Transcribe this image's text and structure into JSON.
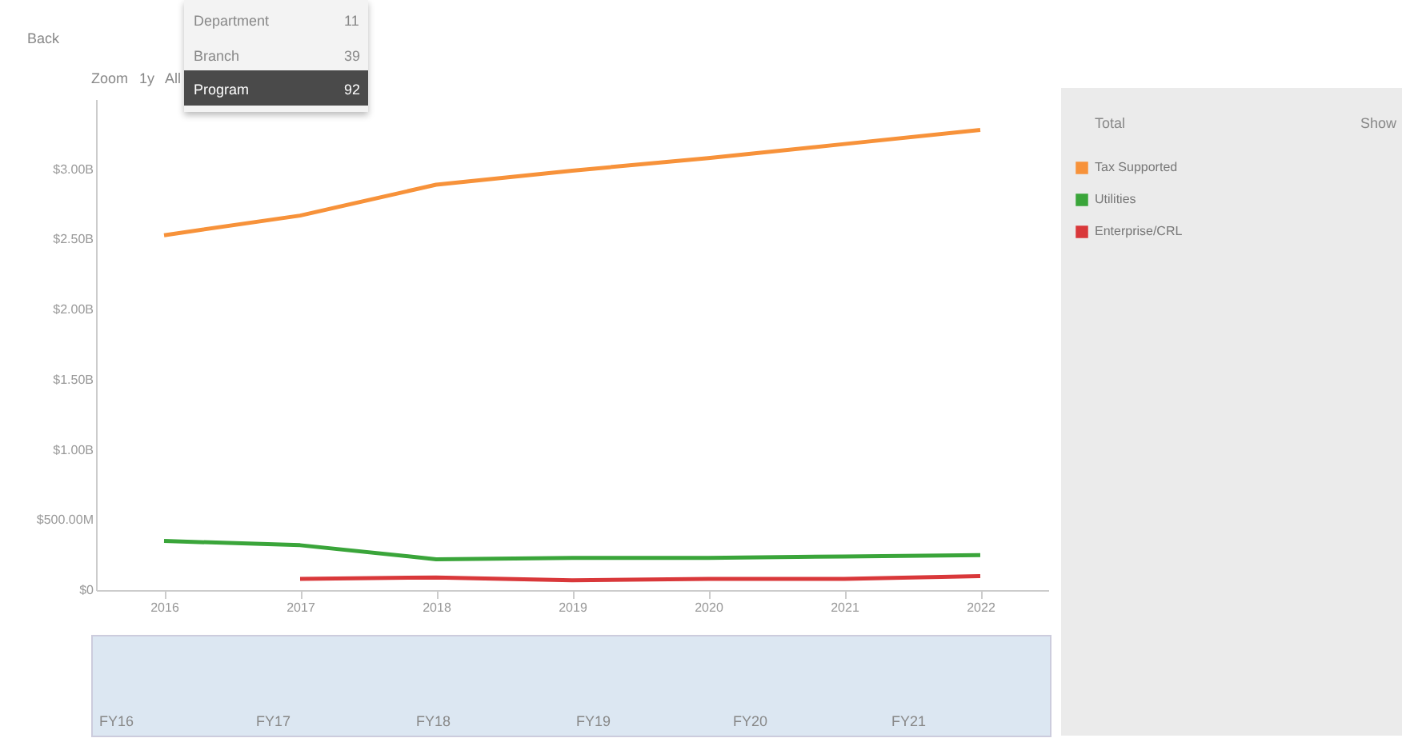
{
  "chart_data": {
    "type": "line",
    "categories": [
      "2016",
      "2017",
      "2018",
      "2019",
      "2020",
      "2021",
      "2022"
    ],
    "series": [
      {
        "name": "Tax Supported",
        "color": "#f7923a",
        "values": [
          2530000000,
          2670000000,
          2890000000,
          2990000000,
          3080000000,
          3180000000,
          3280000000
        ]
      },
      {
        "name": "Utilities",
        "color": "#3aa53a",
        "values": [
          350000000,
          320000000,
          220000000,
          230000000,
          230000000,
          240000000,
          250000000
        ]
      },
      {
        "name": "Enterprise/CRL",
        "color": "#d9383a",
        "values": [
          null,
          80000000,
          90000000,
          70000000,
          80000000,
          80000000,
          100000000
        ]
      }
    ],
    "ylim": [
      0,
      3500000000
    ],
    "yticks": [
      {
        "value": 0,
        "label": "$0"
      },
      {
        "value": 500000000,
        "label": "$500.00M"
      },
      {
        "value": 1000000000,
        "label": "$1.00B"
      },
      {
        "value": 1500000000,
        "label": "$1.50B"
      },
      {
        "value": 2000000000,
        "label": "$2.00B"
      },
      {
        "value": 2500000000,
        "label": "$2.50B"
      },
      {
        "value": 3000000000,
        "label": "$3.00B"
      }
    ],
    "grid": false,
    "legend": "right",
    "marker": "none",
    "line_style": "solid",
    "annotations": [
      "Back",
      "Zoom",
      "1y",
      "All",
      "Department",
      "11",
      "Branch",
      "39",
      "Program",
      "92",
      "Total",
      "Show",
      "FY16",
      "FY17",
      "FY18",
      "FY19",
      "FY20",
      "FY21"
    ]
  }
}
